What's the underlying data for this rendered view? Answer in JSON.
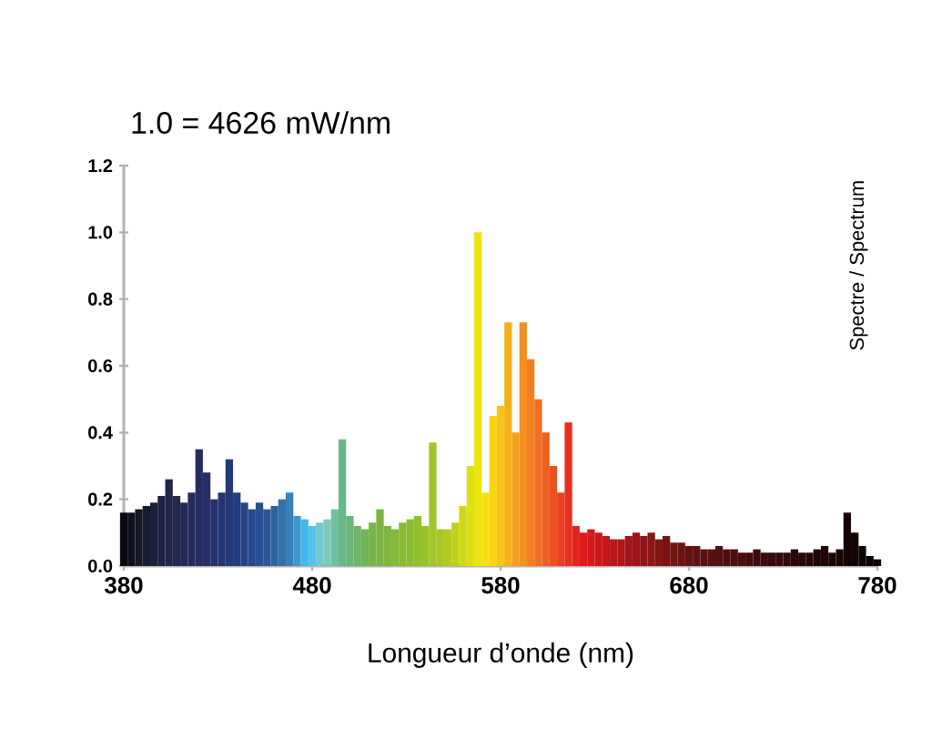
{
  "chart_data": {
    "type": "bar",
    "title": "1.0 = 4626 mW/nm",
    "xlabel": "Longueur d’onde (nm)",
    "annotations": [
      "Spectre / Spectrum"
    ],
    "x": [
      380,
      384,
      388,
      392,
      396,
      400,
      404,
      408,
      412,
      416,
      420,
      424,
      428,
      432,
      436,
      440,
      444,
      448,
      452,
      456,
      460,
      464,
      468,
      472,
      476,
      480,
      484,
      488,
      492,
      496,
      500,
      504,
      508,
      512,
      516,
      520,
      524,
      528,
      532,
      536,
      540,
      544,
      548,
      552,
      556,
      560,
      564,
      568,
      572,
      576,
      580,
      584,
      588,
      592,
      596,
      600,
      604,
      608,
      612,
      616,
      620,
      624,
      628,
      632,
      636,
      640,
      644,
      648,
      652,
      656,
      660,
      664,
      668,
      672,
      676,
      680,
      684,
      688,
      692,
      696,
      700,
      704,
      708,
      712,
      716,
      720,
      724,
      728,
      732,
      736,
      740,
      744,
      748,
      752,
      756,
      760,
      764,
      768,
      772,
      776,
      780
    ],
    "values": [
      0.16,
      0.16,
      0.17,
      0.18,
      0.19,
      0.21,
      0.26,
      0.21,
      0.19,
      0.22,
      0.35,
      0.28,
      0.2,
      0.22,
      0.32,
      0.22,
      0.19,
      0.17,
      0.19,
      0.17,
      0.18,
      0.2,
      0.22,
      0.15,
      0.14,
      0.12,
      0.13,
      0.14,
      0.17,
      0.38,
      0.15,
      0.12,
      0.11,
      0.13,
      0.17,
      0.12,
      0.11,
      0.13,
      0.14,
      0.15,
      0.12,
      0.37,
      0.11,
      0.11,
      0.13,
      0.18,
      0.3,
      1.0,
      0.22,
      0.45,
      0.48,
      0.73,
      0.4,
      0.73,
      0.62,
      0.5,
      0.4,
      0.3,
      0.22,
      0.43,
      0.12,
      0.1,
      0.11,
      0.1,
      0.09,
      0.08,
      0.08,
      0.09,
      0.1,
      0.09,
      0.1,
      0.08,
      0.09,
      0.07,
      0.07,
      0.06,
      0.06,
      0.05,
      0.05,
      0.06,
      0.05,
      0.05,
      0.04,
      0.04,
      0.05,
      0.04,
      0.04,
      0.04,
      0.04,
      0.05,
      0.04,
      0.04,
      0.05,
      0.06,
      0.04,
      0.05,
      0.16,
      0.1,
      0.06,
      0.03,
      0.02
    ],
    "colors": [
      "#0a0a14",
      "#10101c",
      "#141626",
      "#181b30",
      "#1b1f38",
      "#1e2240",
      "#202548",
      "#22284e",
      "#242a55",
      "#252c5a",
      "#262e60",
      "#262f66",
      "#25316c",
      "#243472",
      "#233878",
      "#233c80",
      "#244286",
      "#26488c",
      "#295092",
      "#2c5898",
      "#30629e",
      "#3470a8",
      "#3880b8",
      "#3c98d0",
      "#40b8ec",
      "#50c4ea",
      "#70c8d0",
      "#80c8b8",
      "#70c0a0",
      "#68b888",
      "#6cb478",
      "#70b468",
      "#74b458",
      "#78b44c",
      "#7cb444",
      "#80b640",
      "#84b83c",
      "#88ba38",
      "#8cbc34",
      "#92c030",
      "#98c22c",
      "#a0c628",
      "#a8c824",
      "#b4cc20",
      "#c0d01c",
      "#d0d818",
      "#dee014",
      "#ece410",
      "#f4e010",
      "#f8d414",
      "#f8c418",
      "#f6b01c",
      "#f4a01e",
      "#f29020",
      "#f08020",
      "#ee7020",
      "#ec6020",
      "#ea5020",
      "#e84020",
      "#e63020",
      "#e22420",
      "#dc1c1c",
      "#d4181c",
      "#cc161c",
      "#c2161c",
      "#b8161c",
      "#ae161a",
      "#a4161a",
      "#9a1618",
      "#921618",
      "#8a1616",
      "#821616",
      "#7a1414",
      "#721414",
      "#6c1414",
      "#661212",
      "#601212",
      "#5a1010",
      "#561010",
      "#521010",
      "#4e0e0e",
      "#4a0e0e",
      "#460e0e",
      "#420c0c",
      "#3e0c0c",
      "#3a0c0c",
      "#360a0a",
      "#320a0a",
      "#2e0a0a",
      "#2a0808",
      "#280808",
      "#240808",
      "#220606",
      "#200606",
      "#1c0606",
      "#1a0404",
      "#160404",
      "#120404",
      "#0e0202",
      "#0a0202",
      "#080000"
    ],
    "xlim": [
      380,
      780
    ],
    "ylim": [
      0,
      1.2
    ],
    "xticks": [
      380,
      480,
      580,
      680,
      780
    ],
    "yticks": [
      {
        "value": 0,
        "label": "0.0"
      },
      {
        "value": 0.2,
        "label": "0.2"
      },
      {
        "value": 0.4,
        "label": "0.4"
      },
      {
        "value": 0.6,
        "label": "0.6"
      },
      {
        "value": 0.8,
        "label": "0.8"
      },
      {
        "value": 1.0,
        "label": "1.0"
      },
      {
        "value": 1.2,
        "label": "1.2"
      }
    ]
  }
}
